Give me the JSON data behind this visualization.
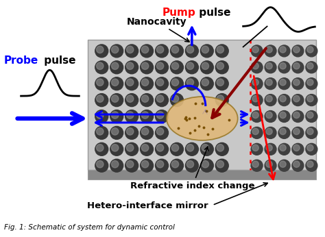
{
  "bg_color": "#ffffff",
  "fig_caption": "Fig. 1: Schematic of system for dynamic control",
  "title_pump_red": "Pump",
  "title_pump_black": " pulse",
  "title_probe_blue": "Probe",
  "title_probe_black": " pulse",
  "label_nanocavity": "Nanocavity",
  "label_refractive": "Refractive index change",
  "label_hetero": "Hetero-interface mirror",
  "slab_face_color": "#c8c8c8",
  "slab_edge_color": "#999999",
  "slab_bottom_color": "#888888",
  "hole_color_left": "#404040",
  "hole_color_right": "#505050",
  "cavity_ellipse_color": "#e0b87a",
  "cavity_ellipse_edge": "#9b7a2a",
  "probe_color": "#0000ff",
  "pump_color": "#8b0000",
  "hetero_dot_color": "#ff0000",
  "hetero_arrow_color": "#ff0000",
  "black": "#000000"
}
